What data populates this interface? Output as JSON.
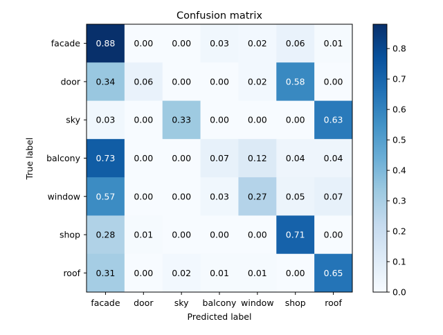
{
  "chart_data": {
    "type": "heatmap",
    "title": "Confusion matrix",
    "xlabel": "Predicted label",
    "ylabel": "True label",
    "x_categories": [
      "facade",
      "door",
      "sky",
      "balcony",
      "window",
      "shop",
      "roof"
    ],
    "y_categories": [
      "facade",
      "door",
      "sky",
      "balcony",
      "window",
      "shop",
      "roof"
    ],
    "values": [
      [
        0.88,
        0.0,
        0.0,
        0.03,
        0.02,
        0.06,
        0.01
      ],
      [
        0.34,
        0.06,
        0.0,
        0.0,
        0.02,
        0.58,
        0.0
      ],
      [
        0.03,
        0.0,
        0.33,
        0.0,
        0.0,
        0.0,
        0.63
      ],
      [
        0.73,
        0.0,
        0.0,
        0.07,
        0.12,
        0.04,
        0.04
      ],
      [
        0.57,
        0.0,
        0.0,
        0.03,
        0.27,
        0.05,
        0.07
      ],
      [
        0.28,
        0.01,
        0.0,
        0.0,
        0.0,
        0.71,
        0.0
      ],
      [
        0.31,
        0.0,
        0.02,
        0.01,
        0.01,
        0.0,
        0.65
      ]
    ],
    "colormap": "Blues",
    "color_range": [
      0.0,
      0.88
    ],
    "colorbar_ticks": [
      "0.0",
      "0.1",
      "0.2",
      "0.3",
      "0.4",
      "0.5",
      "0.6",
      "0.7",
      "0.8"
    ],
    "grid": false
  }
}
